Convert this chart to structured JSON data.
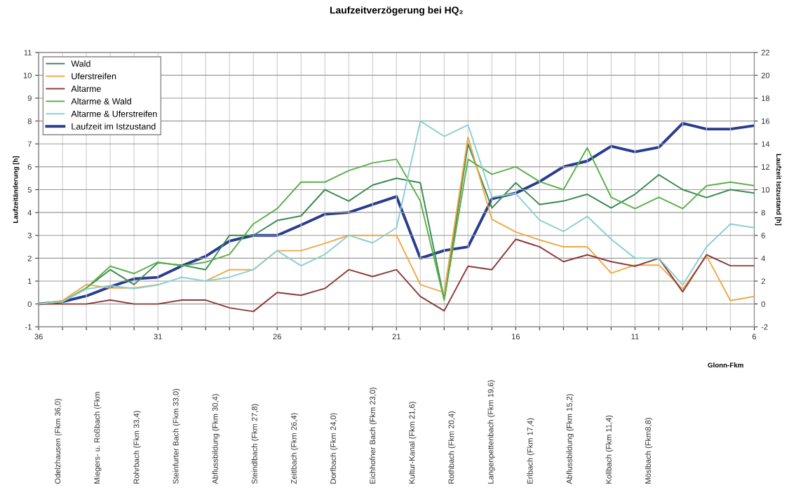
{
  "chart_data": {
    "type": "line",
    "title": "Laufzeitverzögerung bei HQ₂",
    "xlabel": "Glonn-Fkm",
    "ylabel": "Laufzeitänderung [h]",
    "y2label": "Laufzeit Istzustand [h]",
    "x": [
      36,
      35,
      34,
      33,
      32,
      31,
      30,
      29,
      28,
      27,
      26,
      25,
      24,
      23,
      22,
      21,
      20,
      19,
      18,
      17,
      16,
      15,
      14,
      13,
      12,
      11,
      10,
      9,
      8,
      7,
      6
    ],
    "series": [
      {
        "name": "Wald",
        "color": "#3a8a50",
        "values": [
          0,
          0.1,
          0.7,
          1.5,
          0.85,
          1.8,
          1.7,
          1.5,
          3.0,
          3.0,
          3.65,
          3.85,
          5.0,
          4.5,
          5.2,
          5.5,
          5.3,
          0.2,
          7.0,
          4.2,
          5.3,
          4.35,
          4.5,
          4.8,
          4.2,
          4.8,
          5.65,
          5.0,
          4.65,
          5.0,
          4.85
        ]
      },
      {
        "name": "Uferstreifen",
        "color": "#f0a848",
        "values": [
          0,
          0.15,
          0.85,
          0.7,
          0.7,
          0.85,
          null,
          1.0,
          1.5,
          1.5,
          2.33,
          2.33,
          2.65,
          3.0,
          3.0,
          3.0,
          0.85,
          0.5,
          7.3,
          3.7,
          3.15,
          2.8,
          2.5,
          2.5,
          1.35,
          1.7,
          1.7,
          0.65,
          2.1,
          0.15,
          0.33
        ]
      },
      {
        "name": "Altarme",
        "color": "#8b3a3a",
        "values": [
          0,
          0,
          0,
          0.17,
          0,
          0,
          0.17,
          0.17,
          -0.17,
          -0.33,
          0.5,
          0.38,
          0.68,
          1.5,
          1.2,
          1.5,
          0.33,
          -0.3,
          1.65,
          1.5,
          2.83,
          2.5,
          1.85,
          2.15,
          1.85,
          1.65,
          2.0,
          0.53,
          2.15,
          1.67,
          1.67
        ]
      },
      {
        "name": "Altarme & Wald",
        "color": "#5ab04a",
        "values": [
          0,
          0.1,
          0.7,
          1.65,
          1.33,
          1.83,
          1.67,
          1.83,
          2.17,
          3.5,
          4.17,
          5.33,
          5.33,
          5.83,
          6.17,
          6.33,
          4.5,
          0.17,
          6.33,
          5.67,
          6.0,
          5.35,
          5.0,
          6.83,
          4.67,
          4.17,
          4.67,
          4.17,
          5.17,
          5.33,
          5.17
        ]
      },
      {
        "name": "Altarme & Uferstreifen",
        "color": "#8ccfd0",
        "values": [
          0,
          0.1,
          0.65,
          0.8,
          0.67,
          0.83,
          1.17,
          1.0,
          1.17,
          1.5,
          2.33,
          1.67,
          2.17,
          3.0,
          2.67,
          3.33,
          8.0,
          7.33,
          7.83,
          4.67,
          4.83,
          3.67,
          3.17,
          3.83,
          2.83,
          2.0,
          2.0,
          0.83,
          2.5,
          3.5,
          3.33
        ]
      },
      {
        "name": "Laufzeit im Istzustand",
        "color": "#283c90",
        "axis": "y2",
        "values": [
          0,
          0.2,
          0.7,
          1.5,
          2.2,
          2.33,
          3.33,
          4.17,
          5.5,
          6.0,
          6.0,
          6.9,
          7.85,
          8.0,
          8.7,
          9.4,
          4.0,
          4.67,
          5.0,
          9.2,
          9.7,
          10.7,
          12.0,
          12.5,
          13.8,
          13.3,
          13.7,
          15.8,
          15.3,
          15.3,
          15.6
        ]
      }
    ],
    "xlim": [
      36,
      6
    ],
    "xticks": [
      36,
      {
        "value": 35,
        "label": null
      },
      {
        "value": 34,
        "label": null
      },
      {
        "value": 33,
        "label": null
      },
      {
        "value": 32,
        "label": null
      },
      31,
      {
        "value": 30,
        "label": null
      },
      {
        "value": 29,
        "label": null
      },
      {
        "value": 28,
        "label": null
      },
      {
        "value": 27,
        "label": null
      },
      26,
      {
        "value": 25,
        "label": null
      },
      {
        "value": 24,
        "label": null
      },
      {
        "value": 23,
        "label": null
      },
      {
        "value": 22,
        "label": null
      },
      21,
      {
        "value": 20,
        "label": null
      },
      {
        "value": 19,
        "label": null
      },
      {
        "value": 18,
        "label": null
      },
      {
        "value": 17,
        "label": null
      },
      16,
      {
        "value": 15,
        "label": null
      },
      {
        "value": 14,
        "label": null
      },
      {
        "value": 13,
        "label": null
      },
      {
        "value": 12,
        "label": null
      },
      11,
      {
        "value": 10,
        "label": null
      },
      {
        "value": 9,
        "label": null
      },
      {
        "value": 8,
        "label": null
      },
      {
        "value": 7,
        "label": null
      },
      6
    ],
    "ylim": [
      -1,
      11
    ],
    "yticks": [
      -1,
      0,
      1,
      2,
      3,
      4,
      5,
      6,
      7,
      8,
      9,
      10,
      11
    ],
    "y2lim": [
      -2,
      22
    ],
    "y2ticks": [
      -2,
      0,
      2,
      4,
      6,
      8,
      10,
      12,
      14,
      16,
      18,
      20,
      22
    ],
    "grid": true,
    "legend": "top left",
    "line_style": "solid",
    "marker": "none",
    "annotations": [
      "Odelzhausen (Fkm 36,0)",
      "Miegers- u. Roßbach (Fkm",
      "Rohrbach (Fkm 33,4)",
      "Steinfurter Bach (Fkm 33,0)",
      "Abflussbildung (Fkm 30,4)",
      "Steindlbach (Fkm 27,8)",
      "Zeitlbach (Fkm 26,4)",
      "Dorfbach (Fkm 24,0)",
      "Eichhofner Bach (Fkm 23,0)",
      "Kultur-Kanal (Fkm 21,6)",
      "Rothbach (Fkm 20,4)",
      "Langenpettenbach (Fkm 19,6)",
      "Erlbach (Fkm 17,4)",
      "Abflussbildung (Fkm 15,2)",
      "Kollbach (Fkm 11,4)",
      "Möslbach (Fkm8,8)"
    ]
  }
}
